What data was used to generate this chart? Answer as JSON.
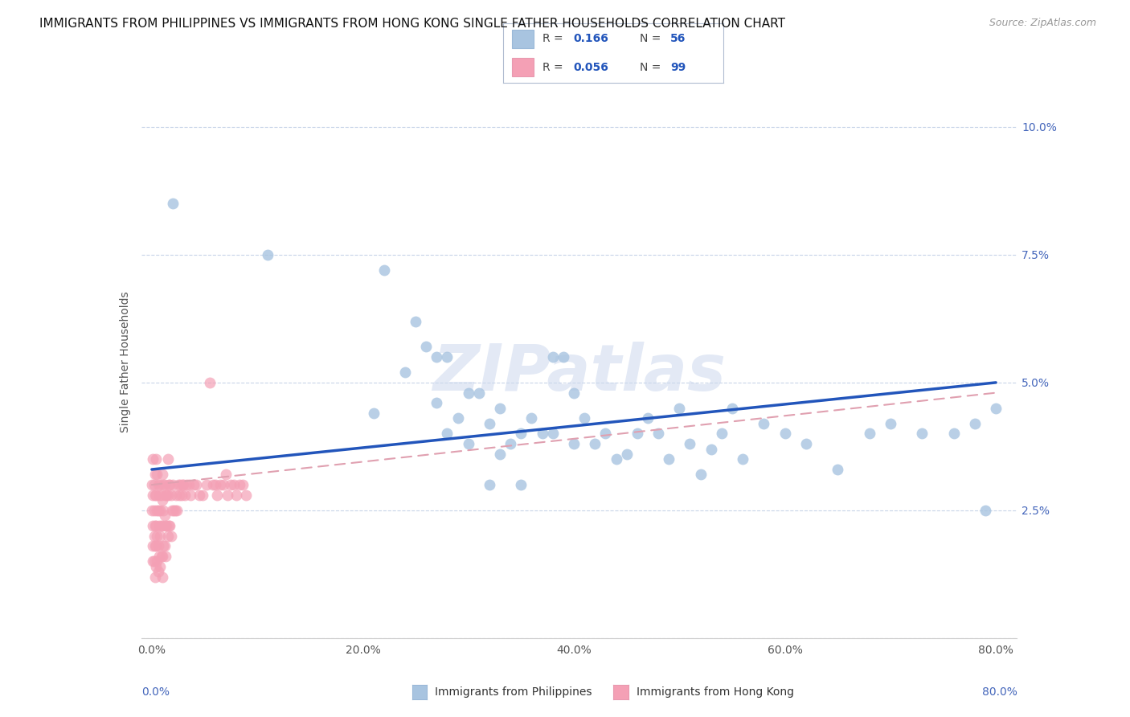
{
  "title": "IMMIGRANTS FROM PHILIPPINES VS IMMIGRANTS FROM HONG KONG SINGLE FATHER HOUSEHOLDS CORRELATION CHART",
  "source": "Source: ZipAtlas.com",
  "ylabel": "Single Father Households",
  "legend_blue_label": "Immigrants from Philippines",
  "legend_pink_label": "Immigrants from Hong Kong",
  "legend_blue_r": "0.166",
  "legend_blue_n": "56",
  "legend_pink_r": "0.056",
  "legend_pink_n": "99",
  "watermark": "ZIPatlas",
  "blue_color": "#a8c4e0",
  "blue_edge_color": "#a8c4e0",
  "pink_color": "#f4a0b5",
  "pink_edge_color": "#f4a0b5",
  "blue_line_color": "#2255bb",
  "pink_line_color": "#e0a0b0",
  "grid_color": "#c8d4e8",
  "bg_color": "#ffffff",
  "title_fontsize": 11,
  "label_fontsize": 10,
  "tick_fontsize": 10,
  "xlim": [
    -0.01,
    0.82
  ],
  "ylim": [
    0.0,
    0.108
  ],
  "yticks": [
    0.0,
    0.025,
    0.05,
    0.075,
    0.1
  ],
  "ytick_labels": [
    "",
    "2.5%",
    "5.0%",
    "7.5%",
    "10.0%"
  ],
  "xticks": [
    0.0,
    0.2,
    0.4,
    0.6,
    0.8
  ],
  "xtick_labels": [
    "0.0%",
    "20.0%",
    "40.0%",
    "60.0%",
    "80.0%"
  ],
  "blue_x": [
    0.02,
    0.11,
    0.21,
    0.22,
    0.24,
    0.25,
    0.26,
    0.27,
    0.27,
    0.28,
    0.28,
    0.29,
    0.3,
    0.3,
    0.31,
    0.32,
    0.32,
    0.33,
    0.33,
    0.34,
    0.35,
    0.35,
    0.36,
    0.37,
    0.38,
    0.38,
    0.39,
    0.4,
    0.4,
    0.41,
    0.42,
    0.43,
    0.44,
    0.45,
    0.46,
    0.47,
    0.48,
    0.49,
    0.5,
    0.51,
    0.52,
    0.53,
    0.54,
    0.55,
    0.56,
    0.58,
    0.6,
    0.62,
    0.65,
    0.68,
    0.7,
    0.73,
    0.76,
    0.78,
    0.79,
    0.8
  ],
  "blue_y": [
    0.085,
    0.075,
    0.044,
    0.072,
    0.052,
    0.062,
    0.057,
    0.046,
    0.055,
    0.055,
    0.04,
    0.043,
    0.048,
    0.038,
    0.048,
    0.042,
    0.03,
    0.036,
    0.045,
    0.038,
    0.04,
    0.03,
    0.043,
    0.04,
    0.055,
    0.04,
    0.055,
    0.048,
    0.038,
    0.043,
    0.038,
    0.04,
    0.035,
    0.036,
    0.04,
    0.043,
    0.04,
    0.035,
    0.045,
    0.038,
    0.032,
    0.037,
    0.04,
    0.045,
    0.035,
    0.042,
    0.04,
    0.038,
    0.033,
    0.04,
    0.042,
    0.04,
    0.04,
    0.042,
    0.025,
    0.045
  ],
  "pink_x": [
    0.0,
    0.0,
    0.001,
    0.001,
    0.001,
    0.001,
    0.001,
    0.002,
    0.002,
    0.002,
    0.002,
    0.003,
    0.003,
    0.003,
    0.003,
    0.003,
    0.004,
    0.004,
    0.004,
    0.004,
    0.004,
    0.005,
    0.005,
    0.005,
    0.005,
    0.006,
    0.006,
    0.006,
    0.006,
    0.007,
    0.007,
    0.007,
    0.008,
    0.008,
    0.008,
    0.008,
    0.009,
    0.009,
    0.009,
    0.01,
    0.01,
    0.01,
    0.01,
    0.01,
    0.011,
    0.011,
    0.011,
    0.012,
    0.012,
    0.012,
    0.013,
    0.013,
    0.013,
    0.014,
    0.014,
    0.015,
    0.015,
    0.015,
    0.016,
    0.016,
    0.017,
    0.017,
    0.018,
    0.018,
    0.019,
    0.02,
    0.021,
    0.022,
    0.023,
    0.024,
    0.025,
    0.026,
    0.027,
    0.028,
    0.029,
    0.03,
    0.031,
    0.033,
    0.035,
    0.037,
    0.04,
    0.042,
    0.045,
    0.048,
    0.052,
    0.055,
    0.058,
    0.06,
    0.062,
    0.065,
    0.068,
    0.07,
    0.072,
    0.075,
    0.078,
    0.08,
    0.083,
    0.086,
    0.089
  ],
  "pink_y": [
    0.03,
    0.025,
    0.035,
    0.028,
    0.022,
    0.018,
    0.015,
    0.03,
    0.025,
    0.02,
    0.015,
    0.032,
    0.028,
    0.022,
    0.018,
    0.012,
    0.035,
    0.028,
    0.022,
    0.018,
    0.014,
    0.032,
    0.025,
    0.02,
    0.015,
    0.03,
    0.025,
    0.018,
    0.013,
    0.028,
    0.022,
    0.016,
    0.03,
    0.025,
    0.02,
    0.014,
    0.028,
    0.022,
    0.016,
    0.032,
    0.027,
    0.022,
    0.016,
    0.012,
    0.03,
    0.025,
    0.018,
    0.03,
    0.024,
    0.018,
    0.028,
    0.022,
    0.016,
    0.028,
    0.022,
    0.035,
    0.028,
    0.02,
    0.03,
    0.022,
    0.03,
    0.022,
    0.028,
    0.02,
    0.025,
    0.03,
    0.025,
    0.025,
    0.028,
    0.025,
    0.03,
    0.028,
    0.03,
    0.028,
    0.03,
    0.03,
    0.028,
    0.03,
    0.03,
    0.028,
    0.03,
    0.03,
    0.028,
    0.028,
    0.03,
    0.05,
    0.03,
    0.03,
    0.028,
    0.03,
    0.03,
    0.032,
    0.028,
    0.03,
    0.03,
    0.028,
    0.03,
    0.03,
    0.028
  ]
}
